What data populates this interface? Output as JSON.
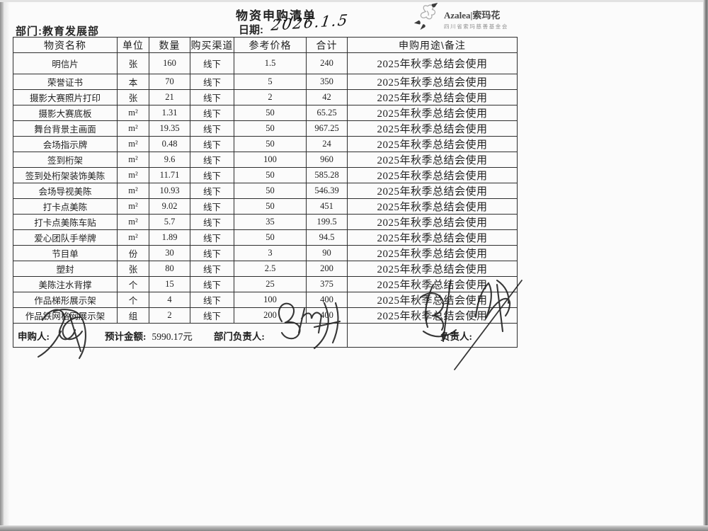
{
  "header": {
    "title": "物资申购清单",
    "department": "部门:教育发展部",
    "date_label": "日期:",
    "date_value": "2026.1.5"
  },
  "logo": {
    "brand": "Azalea|索玛花",
    "subtitle": "四川省索玛慈善基金会",
    "icon": "flower-sketch-icon"
  },
  "table": {
    "columns": [
      "物资名称",
      "单位",
      "数量",
      "购买渠道",
      "参考价格",
      "合计",
      "申购用途\\备注"
    ],
    "rows": [
      {
        "name": "明信片",
        "unit": "张",
        "qty": "160",
        "channel": "线下",
        "price": "1.5",
        "total": "240",
        "remark": "2025年秋季总结会使用"
      },
      {
        "name": "荣誉证书",
        "unit": "本",
        "qty": "70",
        "channel": "线下",
        "price": "5",
        "total": "350",
        "remark": "2025年秋季总结会使用"
      },
      {
        "name": "摄影大赛照片打印",
        "unit": "张",
        "qty": "21",
        "channel": "线下",
        "price": "2",
        "total": "42",
        "remark": "2025年秋季总结会使用"
      },
      {
        "name": "摄影大赛底板",
        "unit": "m²",
        "qty": "1.31",
        "channel": "线下",
        "price": "50",
        "total": "65.25",
        "remark": "2025年秋季总结会使用"
      },
      {
        "name": "舞台背景主画面",
        "unit": "m²",
        "qty": "19.35",
        "channel": "线下",
        "price": "50",
        "total": "967.25",
        "remark": "2025年秋季总结会使用"
      },
      {
        "name": "会场指示牌",
        "unit": "m²",
        "qty": "0.48",
        "channel": "线下",
        "price": "50",
        "total": "24",
        "remark": "2025年秋季总结会使用"
      },
      {
        "name": "签到桁架",
        "unit": "m²",
        "qty": "9.6",
        "channel": "线下",
        "price": "100",
        "total": "960",
        "remark": "2025年秋季总结会使用"
      },
      {
        "name": "签到处桁架装饰美陈",
        "unit": "m²",
        "qty": "11.71",
        "channel": "线下",
        "price": "50",
        "total": "585.28",
        "remark": "2025年秋季总结会使用"
      },
      {
        "name": "会场导视美陈",
        "unit": "m²",
        "qty": "10.93",
        "channel": "线下",
        "price": "50",
        "total": "546.39",
        "remark": "2025年秋季总结会使用"
      },
      {
        "name": "打卡点美陈",
        "unit": "m²",
        "qty": "9.02",
        "channel": "线下",
        "price": "50",
        "total": "451",
        "remark": "2025年秋季总结会使用"
      },
      {
        "name": "打卡点美陈车贴",
        "unit": "m²",
        "qty": "5.7",
        "channel": "线下",
        "price": "35",
        "total": "199.5",
        "remark": "2025年秋季总结会使用"
      },
      {
        "name": "爱心团队手举牌",
        "unit": "m²",
        "qty": "1.89",
        "channel": "线下",
        "price": "50",
        "total": "94.5",
        "remark": "2025年秋季总结会使用"
      },
      {
        "name": "节目单",
        "unit": "份",
        "qty": "30",
        "channel": "线下",
        "price": "3",
        "total": "90",
        "remark": "2025年秋季总结会使用"
      },
      {
        "name": "塑封",
        "unit": "张",
        "qty": "80",
        "channel": "线下",
        "price": "2.5",
        "total": "200",
        "remark": "2025年秋季总结会使用"
      },
      {
        "name": "美陈注水背撑",
        "unit": "个",
        "qty": "15",
        "channel": "线下",
        "price": "25",
        "total": "375",
        "remark": "2025年秋季总结会使用"
      },
      {
        "name": "作品梯形展示架",
        "unit": "个",
        "qty": "4",
        "channel": "线下",
        "price": "100",
        "total": "400",
        "remark": "2025年秋季总结会使用"
      },
      {
        "name": "作品铁网格网展示架",
        "unit": "组",
        "qty": "2",
        "channel": "线下",
        "price": "200",
        "total": "400",
        "remark": "2025年秋季总结会使用"
      }
    ]
  },
  "footer": {
    "applicant_label": "申购人:",
    "estimate_label": "预计金额:",
    "estimate_value": "5990.17元",
    "dept_manager_label": "部门负责人:",
    "manager_label": "负责人:"
  },
  "colors": {
    "ink": "#2e2e2e",
    "signature_ink": "#1c1c1c",
    "paper": "#fbfbfb"
  }
}
